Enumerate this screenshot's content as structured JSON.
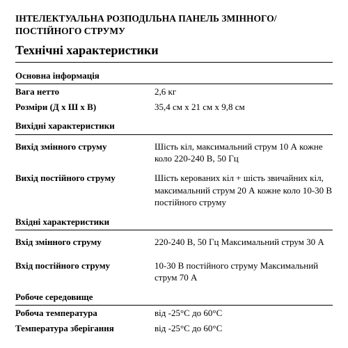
{
  "doc": {
    "title": "ІНТЕЛЕКТУАЛЬНА РОЗПОДІЛЬНА ПАНЕЛЬ ЗМІННОГО/ПОСТІЙНОГО СТРУМУ",
    "subtitle": "Технічні характеристики"
  },
  "sections": {
    "basic": {
      "header": "Основна інформація",
      "weight_label": "Вага нетто",
      "weight_value": "2,6 кг",
      "dims_label": "Розміри (Д x Ш x В)",
      "dims_value": "35,4 см x 21 см x 9,8 см"
    },
    "output": {
      "header": "Вихідні характеристики",
      "ac_label": "Вихід змінного струму",
      "ac_value": "Шість кіл, максимальний струм 10 А кожне коло 220-240 В, 50 Гц",
      "dc_label": "Вихід постійного струму",
      "dc_value": "Шість керованих кіл + шість звичайних кіл, максимальний струм 20 А кожне коло 10-30 В постійного струму"
    },
    "input": {
      "header": "Вхідні характеристики",
      "ac_label": "Вхід змінного струму",
      "ac_value": "220-240 В, 50 Гц Максимальний струм 30 А",
      "dc_label": "Вхід постійного струму",
      "dc_value": "10-30 В постійного струму Максимальний струм 70 А"
    },
    "env": {
      "header": "Робоче середовище",
      "optemp_label": "Робоча температура",
      "optemp_value": "від -25°C до 60°C",
      "sttemp_label": "Температура зберігання",
      "sttemp_value": "від -25°C до 60°C"
    }
  }
}
